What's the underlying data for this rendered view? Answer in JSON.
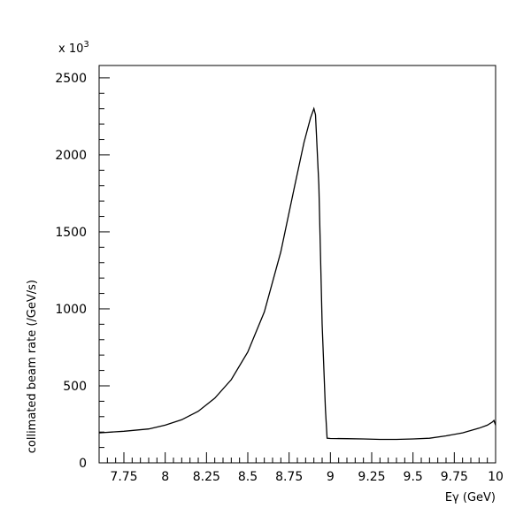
{
  "chart_data": {
    "type": "line",
    "title": "",
    "xlabel": "Eγ (GeV)",
    "ylabel": "collimated beam rate (/GeV/s)",
    "y_multiplier": "x 10",
    "y_multiplier_exp": "3",
    "xlim": [
      7.6,
      10.0
    ],
    "ylim": [
      0,
      2580
    ],
    "xticks": [
      7.75,
      8,
      8.25,
      8.5,
      8.75,
      9,
      9.25,
      9.5,
      9.75,
      10
    ],
    "xtick_labels": [
      "7.75",
      "8",
      "8.25",
      "8.5",
      "8.75",
      "9",
      "9.25",
      "9.5",
      "9.75",
      "10"
    ],
    "yticks": [
      0,
      500,
      1000,
      1500,
      2000,
      2500
    ],
    "ytick_labels": [
      "0",
      "500",
      "1000",
      "1500",
      "2000",
      "2500"
    ],
    "grid": false,
    "series": [
      {
        "x": [
          7.6,
          7.75,
          7.9,
          8.0,
          8.1,
          8.2,
          8.3,
          8.4,
          8.5,
          8.6,
          8.7,
          8.78,
          8.84,
          8.88,
          8.9,
          8.91,
          8.93,
          8.95,
          8.97,
          8.98,
          9.0,
          9.1,
          9.2,
          9.3,
          9.4,
          9.5,
          9.6,
          9.7,
          9.8,
          9.9,
          9.95,
          9.98,
          9.99,
          10.0
        ],
        "y": [
          195,
          205,
          220,
          245,
          280,
          335,
          420,
          540,
          720,
          980,
          1370,
          1780,
          2080,
          2240,
          2300,
          2260,
          1800,
          900,
          350,
          160,
          158,
          157,
          155,
          152,
          152,
          155,
          160,
          175,
          195,
          225,
          245,
          265,
          275,
          245
        ]
      }
    ]
  }
}
